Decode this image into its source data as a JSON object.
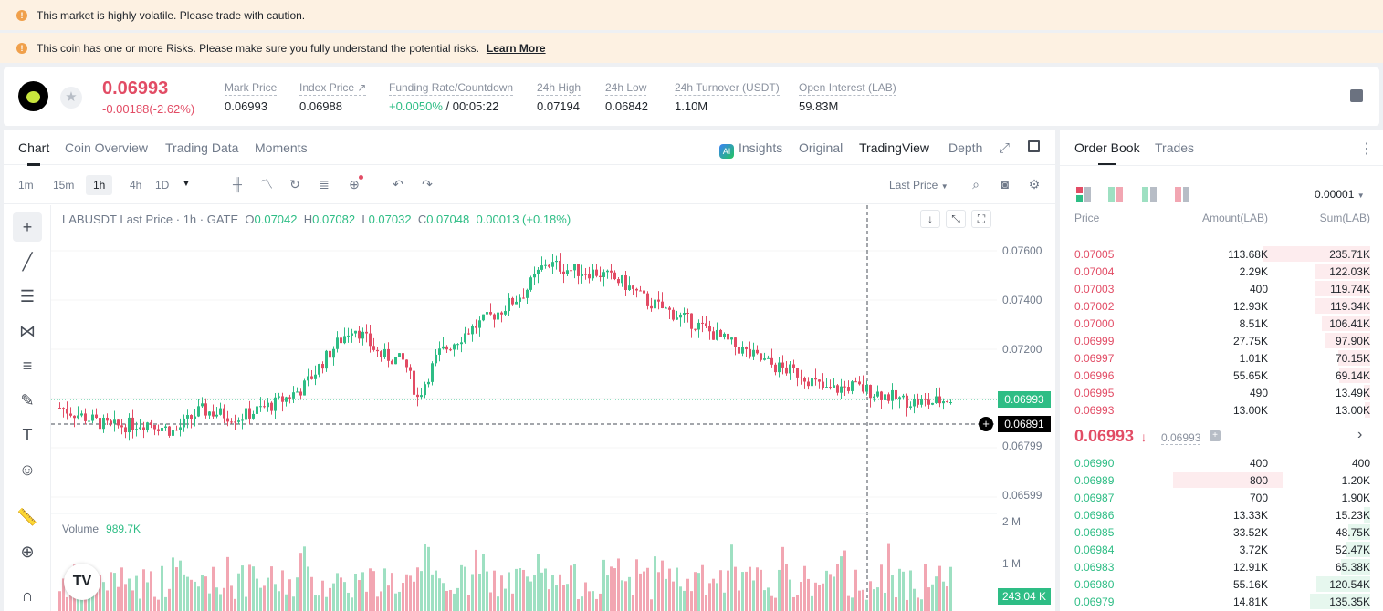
{
  "banners": [
    {
      "text": "This market is highly volatile. Please trade with caution.",
      "link": ""
    },
    {
      "text": "This coin has one or more Risks. Please make sure you fully understand the potential risks.",
      "link": "Learn More"
    }
  ],
  "ticker": {
    "price": "0.06993",
    "change": "-0.00188(-2.62%)",
    "stats": [
      {
        "label": "Mark Price",
        "value": "0.06993"
      },
      {
        "label": "Index Price ↗",
        "value": "0.06988"
      },
      {
        "label": "Funding Rate/Countdown",
        "value_green": "+0.0050%",
        "value": " / 00:05:22"
      },
      {
        "label": "24h High",
        "value": "0.07194"
      },
      {
        "label": "24h Low",
        "value": "0.06842"
      },
      {
        "label": "24h Turnover (USDT)",
        "value": "1.10M"
      },
      {
        "label": "Open Interest (LAB)",
        "value": "59.83M"
      }
    ]
  },
  "chart_tabs": [
    "Chart",
    "Coin Overview",
    "Trading Data",
    "Moments"
  ],
  "view_tabs": {
    "insights": "Insights",
    "original": "Original",
    "tradingview": "TradingView",
    "depth": "Depth"
  },
  "intervals": [
    "1m",
    "15m",
    "1h",
    "4h",
    "1D"
  ],
  "active_interval": "1h",
  "price_source": "Last Price",
  "legend": {
    "title": "LABUSDT Last Price · 1h · GATE",
    "o": "0.07042",
    "h": "0.07082",
    "l": "0.07032",
    "c": "0.07048",
    "chg": "0.00013 (+0.18%)"
  },
  "axis": {
    "prices": [
      "0.07600",
      "0.07400",
      "0.07200",
      "0.06799",
      "0.06599"
    ],
    "current_tag": "0.06993",
    "cursor_tag": "0.06891",
    "vol_labels": [
      "2 M",
      "1 M"
    ],
    "vol_tag": "243.04 K"
  },
  "volume": {
    "label": "Volume",
    "value": "989.7K"
  },
  "orderbook": {
    "tabs": [
      "Order Book",
      "Trades"
    ],
    "precision": "0.00001",
    "headers": [
      "Price",
      "Amount(LAB)",
      "Sum(LAB)"
    ],
    "asks": [
      {
        "p": "0.07005",
        "a": "113.68K",
        "s": "235.71K",
        "d": 1.0
      },
      {
        "p": "0.07004",
        "a": "2.29K",
        "s": "122.03K",
        "d": 0.52
      },
      {
        "p": "0.07003",
        "a": "400",
        "s": "119.74K",
        "d": 0.51
      },
      {
        "p": "0.07002",
        "a": "12.93K",
        "s": "119.34K",
        "d": 0.51
      },
      {
        "p": "0.07000",
        "a": "8.51K",
        "s": "106.41K",
        "d": 0.45
      },
      {
        "p": "0.06999",
        "a": "27.75K",
        "s": "97.90K",
        "d": 0.42
      },
      {
        "p": "0.06997",
        "a": "1.01K",
        "s": "70.15K",
        "d": 0.3
      },
      {
        "p": "0.06996",
        "a": "55.65K",
        "s": "69.14K",
        "d": 0.29
      },
      {
        "p": "0.06995",
        "a": "490",
        "s": "13.49K",
        "d": 0.06
      },
      {
        "p": "0.06993",
        "a": "13.00K",
        "s": "13.00K",
        "d": 0.055
      }
    ],
    "mid": {
      "price": "0.06993",
      "mark": "0.06993"
    },
    "bids": [
      {
        "p": "0.06990",
        "a": "400",
        "s": "400",
        "d": 0.0
      },
      {
        "p": "0.06989",
        "a": "800",
        "s": "1.20K",
        "d": 0.0
      },
      {
        "p": "0.06987",
        "a": "700",
        "s": "1.90K",
        "d": 0.0
      },
      {
        "p": "0.06986",
        "a": "13.33K",
        "s": "15.23K",
        "d": 0.06
      },
      {
        "p": "0.06985",
        "a": "33.52K",
        "s": "48.75K",
        "d": 0.2
      },
      {
        "p": "0.06984",
        "a": "3.72K",
        "s": "52.47K",
        "d": 0.22
      },
      {
        "p": "0.06983",
        "a": "12.91K",
        "s": "65.38K",
        "d": 0.27
      },
      {
        "p": "0.06980",
        "a": "55.16K",
        "s": "120.54K",
        "d": 0.5
      },
      {
        "p": "0.06979",
        "a": "14.81K",
        "s": "135.35K",
        "d": 0.56
      }
    ]
  },
  "colors": {
    "up": "#2ebd85",
    "down": "#e24c65",
    "vol_up": "#9ee0c2",
    "vol_down": "#f2a6b2"
  }
}
